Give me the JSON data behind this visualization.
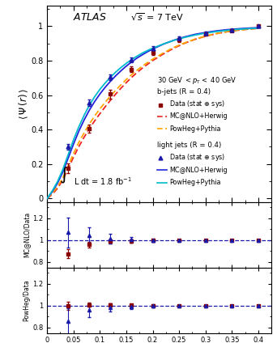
{
  "r_values": [
    0.04,
    0.08,
    0.12,
    0.16,
    0.2,
    0.25,
    0.3,
    0.35,
    0.4
  ],
  "bjets_data": [
    0.175,
    0.405,
    0.605,
    0.75,
    0.845,
    0.92,
    0.955,
    0.975,
    1.0
  ],
  "bjets_data_err": [
    0.03,
    0.025,
    0.025,
    0.018,
    0.015,
    0.012,
    0.01,
    0.008,
    0.006
  ],
  "ljets_data": [
    0.3,
    0.555,
    0.705,
    0.805,
    0.87,
    0.93,
    0.96,
    0.978,
    1.0
  ],
  "ljets_data_err": [
    0.018,
    0.018,
    0.016,
    0.014,
    0.012,
    0.01,
    0.008,
    0.006,
    0.005
  ],
  "r_curve": [
    0.0,
    0.01,
    0.02,
    0.03,
    0.04,
    0.05,
    0.06,
    0.07,
    0.08,
    0.09,
    0.1,
    0.11,
    0.12,
    0.13,
    0.14,
    0.15,
    0.16,
    0.17,
    0.18,
    0.19,
    0.2,
    0.22,
    0.24,
    0.26,
    0.28,
    0.3,
    0.32,
    0.34,
    0.36,
    0.38,
    0.4
  ],
  "bjet_mcnlo_curve": [
    0.0,
    0.025,
    0.06,
    0.11,
    0.175,
    0.24,
    0.3,
    0.355,
    0.405,
    0.45,
    0.492,
    0.532,
    0.57,
    0.606,
    0.64,
    0.672,
    0.702,
    0.73,
    0.755,
    0.778,
    0.8,
    0.838,
    0.872,
    0.9,
    0.923,
    0.941,
    0.956,
    0.967,
    0.976,
    0.982,
    0.987
  ],
  "bjet_powheg_curve": [
    0.0,
    0.03,
    0.07,
    0.12,
    0.19,
    0.26,
    0.325,
    0.38,
    0.432,
    0.478,
    0.52,
    0.558,
    0.594,
    0.628,
    0.66,
    0.69,
    0.718,
    0.743,
    0.767,
    0.788,
    0.808,
    0.844,
    0.876,
    0.902,
    0.924,
    0.942,
    0.956,
    0.967,
    0.976,
    0.982,
    0.987
  ],
  "ljet_mcnlo_curve": [
    0.0,
    0.04,
    0.09,
    0.155,
    0.235,
    0.315,
    0.39,
    0.455,
    0.512,
    0.562,
    0.606,
    0.645,
    0.68,
    0.712,
    0.741,
    0.768,
    0.792,
    0.814,
    0.833,
    0.851,
    0.867,
    0.895,
    0.918,
    0.937,
    0.952,
    0.963,
    0.972,
    0.979,
    0.984,
    0.988,
    0.991
  ],
  "ljet_powheg_curve": [
    0.0,
    0.045,
    0.1,
    0.17,
    0.255,
    0.34,
    0.415,
    0.482,
    0.54,
    0.59,
    0.633,
    0.67,
    0.703,
    0.733,
    0.76,
    0.784,
    0.806,
    0.825,
    0.843,
    0.858,
    0.872,
    0.896,
    0.917,
    0.934,
    0.948,
    0.959,
    0.968,
    0.975,
    0.981,
    0.985,
    0.988
  ],
  "ratio1_bjets": [
    0.875,
    0.96,
    0.99,
    0.993,
    0.997,
    1.0,
    1.0,
    1.0,
    1.0
  ],
  "ratio1_bjets_err": [
    0.04,
    0.025,
    0.018,
    0.013,
    0.01,
    0.008,
    0.007,
    0.006,
    0.005
  ],
  "ratio1_ljets": [
    1.07,
    1.04,
    1.015,
    1.005,
    1.0,
    1.0,
    1.0,
    1.0,
    1.0
  ],
  "ratio1_ljets_err": [
    0.14,
    0.08,
    0.045,
    0.025,
    0.015,
    0.01,
    0.008,
    0.007,
    0.005
  ],
  "ratio2_bjets": [
    1.0,
    1.01,
    1.005,
    1.003,
    1.0,
    1.0,
    1.0,
    1.0,
    1.0
  ],
  "ratio2_bjets_err": [
    0.035,
    0.022,
    0.015,
    0.012,
    0.01,
    0.008,
    0.007,
    0.006,
    0.005
  ],
  "ratio2_ljets": [
    0.855,
    0.96,
    0.985,
    0.995,
    1.0,
    1.0,
    1.0,
    1.0,
    1.0
  ],
  "ratio2_ljets_err": [
    0.12,
    0.065,
    0.038,
    0.022,
    0.015,
    0.01,
    0.008,
    0.007,
    0.005
  ],
  "bjet_color": "#8B0000",
  "ljet_color": "#1a1aaa",
  "bjet_mcnlo_color": "#EE2222",
  "bjet_powheg_color": "#FFA500",
  "ljet_mcnlo_color": "#2222DD",
  "ljet_powheg_color": "#00BBCC",
  "xlim": [
    0.0,
    0.425
  ],
  "ylim_main": [
    -0.02,
    1.12
  ],
  "ylim_ratio1": [
    0.75,
    1.35
  ],
  "ylim_ratio2": [
    0.75,
    1.35
  ]
}
